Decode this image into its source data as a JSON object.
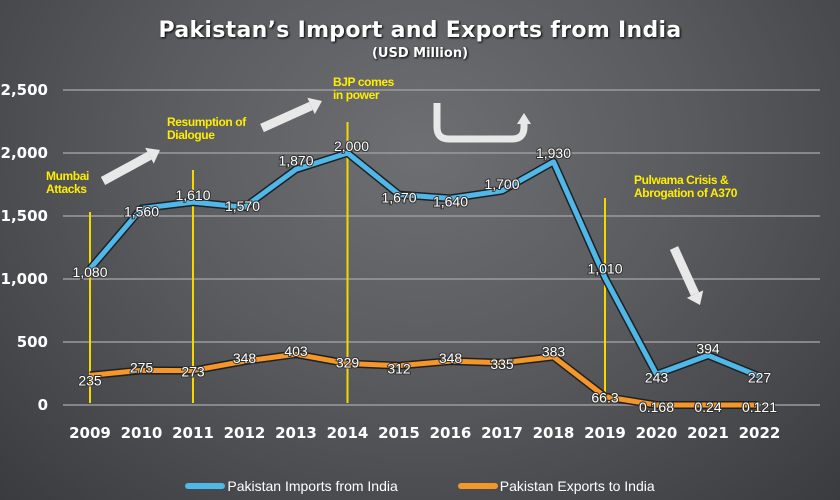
{
  "chart_data": {
    "type": "line",
    "title": "Pakistan’s Import and Exports from India",
    "subtitle": "(USD Million)",
    "xlabel": "",
    "ylabel": "",
    "ylim": [
      0,
      2500
    ],
    "yticks": [
      0,
      500,
      1000,
      1500,
      2000,
      2500
    ],
    "ytick_labels": [
      "0",
      "500",
      "1,000",
      "1,500",
      "2,000",
      "2,500"
    ],
    "grid": true,
    "legend_position": "bottom",
    "categories": [
      "2009",
      "2010",
      "2011",
      "2012",
      "2013",
      "2014",
      "2015",
      "2016",
      "2017",
      "2018",
      "2019",
      "2020",
      "2021",
      "2022"
    ],
    "series": [
      {
        "name": "Pakistan Imports from India",
        "color": "#4fb8e8",
        "values": [
          1080,
          1560,
          1610,
          1570,
          1870,
          2000,
          1670,
          1640,
          1700,
          1930,
          1010,
          243,
          394,
          227
        ],
        "labels": [
          "1,080",
          "1,560",
          "1,610",
          "1,570",
          "1,870",
          "2,000",
          "1,670",
          "1,640",
          "1,700",
          "1,930",
          "1,010",
          "243",
          "394",
          "227"
        ]
      },
      {
        "name": "Pakistan Exports to India",
        "color": "#f5962a",
        "values": [
          235,
          275,
          273,
          348,
          403,
          329,
          312,
          348,
          335,
          383,
          66.3,
          0.168,
          0.24,
          0.121
        ],
        "labels": [
          "235",
          "275",
          "273",
          "348",
          "403",
          "329",
          "312",
          "348",
          "335",
          "383",
          "66.3",
          "0.168",
          "0.24",
          "0.121"
        ]
      }
    ],
    "annotations": [
      {
        "text_lines": [
          "Mumbai",
          "Attacks"
        ],
        "year": "2009",
        "color": "#ffee00"
      },
      {
        "text_lines": [
          "Resumption of",
          "Dialogue"
        ],
        "year": "2011",
        "color": "#ffee00"
      },
      {
        "text_lines": [
          "BJP comes",
          "in power"
        ],
        "year": "2014",
        "color": "#ffee00"
      },
      {
        "text_lines": [
          "Pulwama Crisis &",
          "Abrogation of A370"
        ],
        "year": "2019",
        "color": "#ffee00"
      }
    ],
    "arrows": [
      {
        "name": "up-right-arrow-1",
        "direction": "up-right"
      },
      {
        "name": "up-right-arrow-2",
        "direction": "up-right"
      },
      {
        "name": "u-turn-arrow",
        "direction": "u-turn-up"
      },
      {
        "name": "down-right-arrow",
        "direction": "down-right"
      }
    ]
  }
}
